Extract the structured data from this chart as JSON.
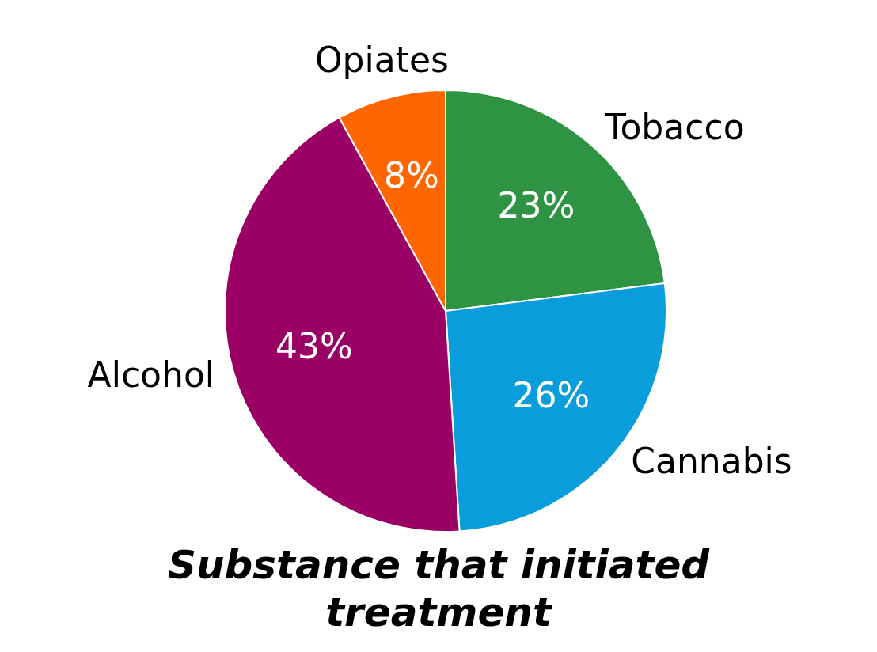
{
  "chart_data": {
    "type": "pie",
    "title": "Substance that initiated treatment",
    "categories": [
      "Tobacco",
      "Cannabis",
      "Alcohol",
      "Opiates"
    ],
    "values": [
      23,
      26,
      43,
      8
    ],
    "value_labels": [
      "23%",
      "26%",
      "43%",
      "8%"
    ],
    "colors": [
      "#2e9444",
      "#0a9ddc",
      "#9b0064",
      "#ff6600"
    ],
    "legend": false
  }
}
